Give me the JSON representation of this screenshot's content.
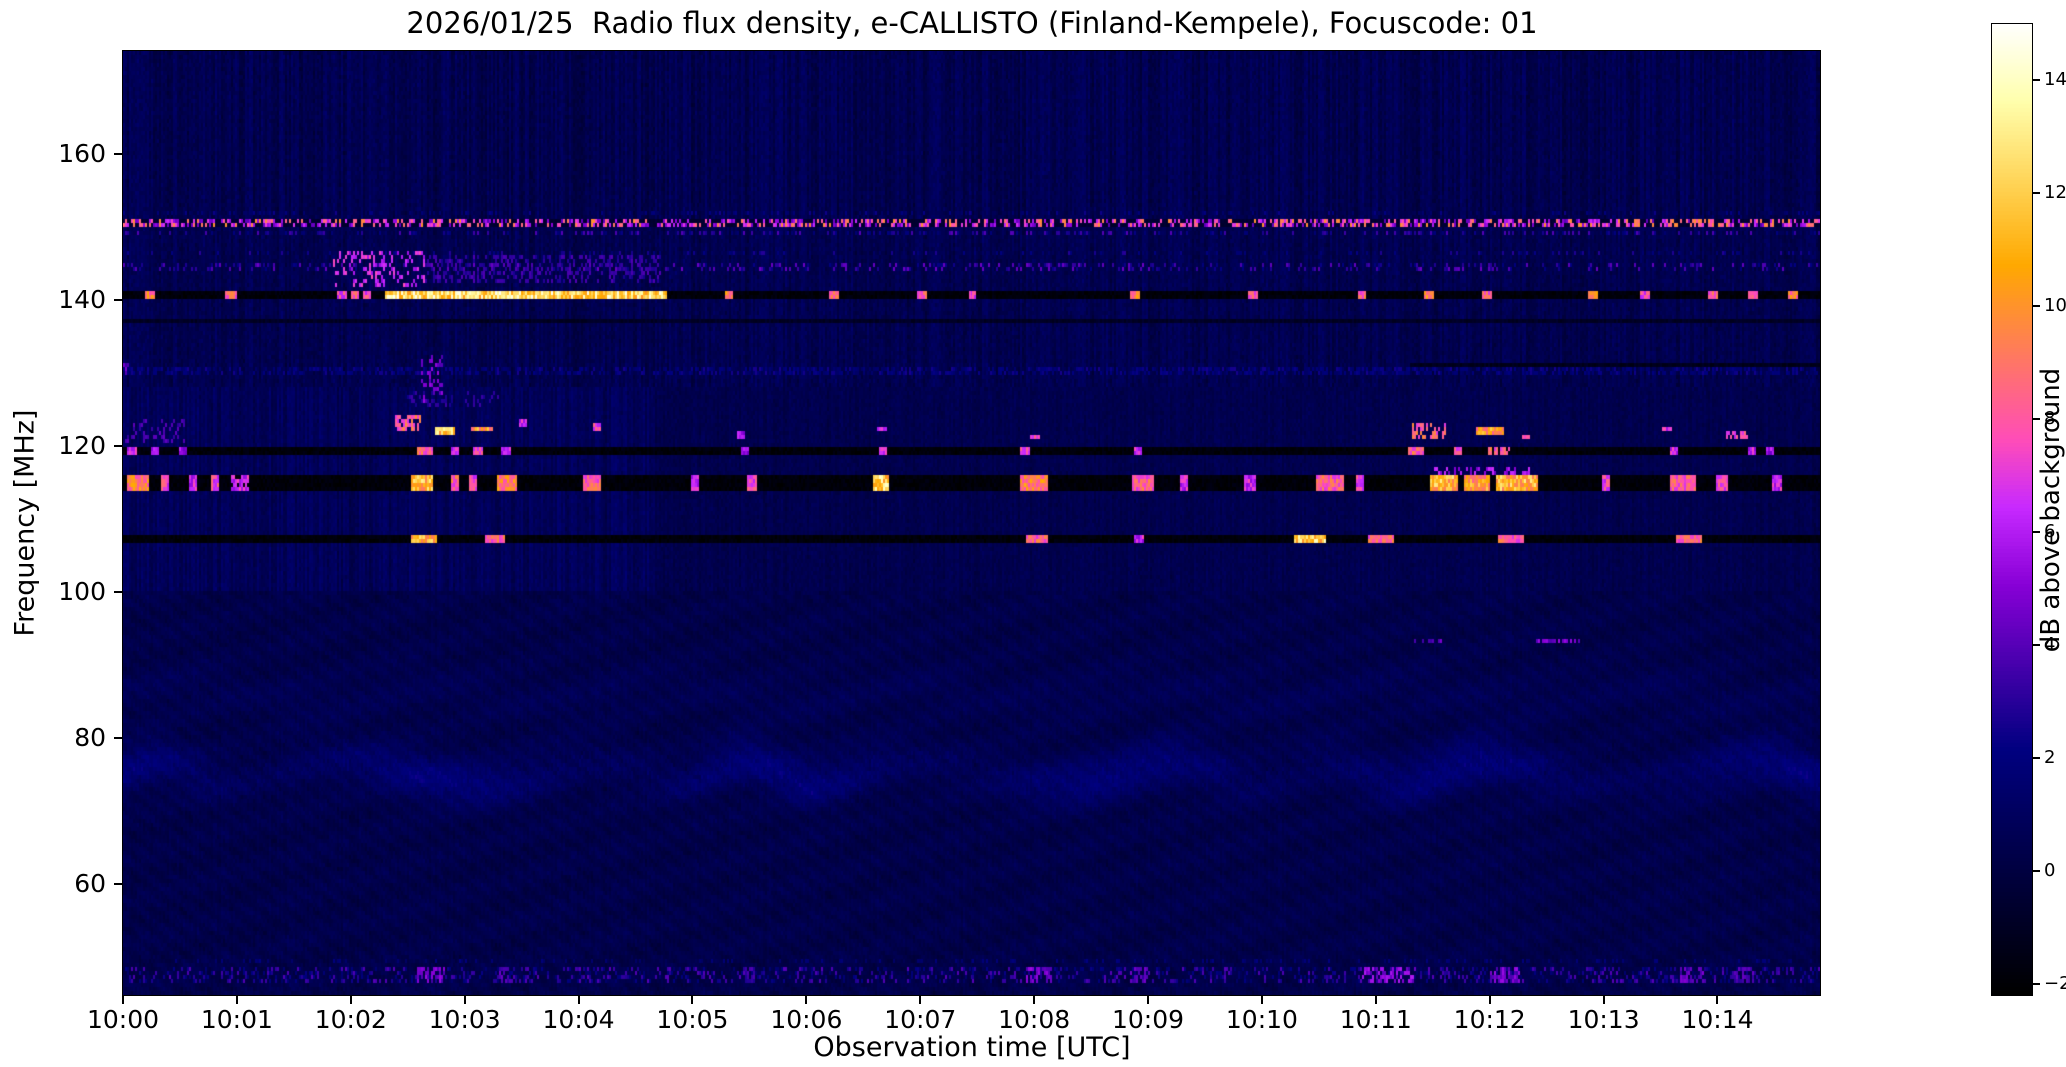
{
  "figure": {
    "title": "2026/01/25  Radio flux density, e-CALLISTO (Finland-Kempele), Focuscode: 01",
    "xlabel": "Observation time [UTC]",
    "ylabel": "Frequency [MHz]",
    "colorbar_label": "dB above background"
  },
  "chart_data": {
    "type": "heatmap",
    "title": "2026/01/25  Radio flux density, e-CALLISTO (Finland-Kempele), Focuscode: 01",
    "xlabel": "Observation time [UTC]",
    "ylabel": "Frequency [MHz]",
    "instrument": "e-CALLISTO (Finland-Kempele)",
    "focuscode": "01",
    "date": "2026/01/25",
    "x_max_minutes": 14.9,
    "x_ticks": [
      {
        "minute": 0,
        "label": "10:00"
      },
      {
        "minute": 1,
        "label": "10:01"
      },
      {
        "minute": 2,
        "label": "10:02"
      },
      {
        "minute": 3,
        "label": "10:03"
      },
      {
        "minute": 4,
        "label": "10:04"
      },
      {
        "minute": 5,
        "label": "10:05"
      },
      {
        "minute": 6,
        "label": "10:06"
      },
      {
        "minute": 7,
        "label": "10:07"
      },
      {
        "minute": 8,
        "label": "10:08"
      },
      {
        "minute": 9,
        "label": "10:09"
      },
      {
        "minute": 10,
        "label": "10:10"
      },
      {
        "minute": 11,
        "label": "10:11"
      },
      {
        "minute": 12,
        "label": "10:12"
      },
      {
        "minute": 13,
        "label": "10:13"
      },
      {
        "minute": 14,
        "label": "10:14"
      }
    ],
    "f_min": 44.8,
    "f_max": 174.1,
    "y_ticks": [
      60,
      80,
      100,
      120,
      140,
      160
    ],
    "colorbar": {
      "label": "dB above background",
      "vmin": -2.2,
      "vmax": 15,
      "ticks": [
        -2,
        0,
        2,
        4,
        6,
        8,
        10,
        12,
        14
      ]
    },
    "colormap": "gnuplot2-like: black - blue - violet - magenta - orange - yellow - white",
    "background_db": {
      "upper_mean": 0.5,
      "mid_mean_early": 0.8,
      "mid_mean_late": 0.45,
      "lower_mean": 0.3,
      "wavy_band_center_mhz": 75.3
    },
    "features": {
      "hlines": [
        {
          "f0": 139.9,
          "f1": 141.5,
          "v": -2.2
        },
        {
          "f0": 118.85,
          "f1": 119.75,
          "v": -2.2
        },
        {
          "f0": 113.6,
          "f1": 115.9,
          "v": -2.2
        },
        {
          "f0": 106.7,
          "f1": 107.8,
          "v": -2.2
        },
        {
          "f0": 137.0,
          "f1": 137.45,
          "v": -1.3
        },
        {
          "f0": 130.9,
          "f1": 131.45,
          "v": -1.6,
          "t0": 11.3
        }
      ],
      "speckle_lines": [
        {
          "f0": 150.2,
          "f1": 151.0,
          "chance": 0.5,
          "vlo": 4,
          "vhi": 10,
          "base": -0.8
        },
        {
          "f0": 149.0,
          "f1": 149.4,
          "chance": 0.3,
          "vlo": 1.5,
          "vhi": 4
        },
        {
          "f0": 151.8,
          "f1": 152.2,
          "chance": 0.2,
          "vlo": 1,
          "vhi": 2.5
        },
        {
          "f0": 144.1,
          "f1": 145.3,
          "chance": 0.22,
          "vlo": 2,
          "vhi": 4.5
        },
        {
          "f0": 146.2,
          "f1": 146.6,
          "chance": 0.15,
          "vlo": 1.5,
          "vhi": 3
        },
        {
          "f0": 129.9,
          "f1": 130.6,
          "chance": 0.5,
          "vlo": 1.2,
          "vhi": 2.6
        },
        {
          "f0": 46.3,
          "f1": 48.6,
          "chance": 0.3,
          "vlo": 1.2,
          "vhi": 4.0
        },
        {
          "f0": 49.2,
          "f1": 49.6,
          "chance": 0.15,
          "vlo": 1.2,
          "vhi": 2.2
        }
      ],
      "patches": [
        [
          0.2,
          0.28,
          139.9,
          141.5,
          10
        ],
        [
          0.9,
          1.0,
          139.9,
          141.5,
          9
        ],
        [
          1.88,
          1.96,
          139.9,
          141.5,
          8
        ],
        [
          2.0,
          2.07,
          139.9,
          141.5,
          9
        ],
        [
          2.1,
          2.17,
          139.9,
          141.5,
          8
        ],
        [
          2.3,
          4.78,
          139.9,
          141.5,
          13.5
        ],
        [
          5.28,
          5.36,
          139.9,
          141.5,
          10
        ],
        [
          6.2,
          6.28,
          139.9,
          141.5,
          9
        ],
        [
          6.97,
          7.05,
          139.9,
          141.5,
          9
        ],
        [
          7.42,
          7.5,
          139.9,
          141.5,
          8
        ],
        [
          8.84,
          8.93,
          139.9,
          141.5,
          10
        ],
        [
          9.88,
          9.97,
          139.9,
          141.5,
          9
        ],
        [
          10.84,
          10.92,
          139.9,
          141.5,
          9
        ],
        [
          11.43,
          11.52,
          139.9,
          141.5,
          10
        ],
        [
          11.93,
          12.02,
          139.9,
          141.5,
          9
        ],
        [
          12.87,
          12.96,
          139.9,
          141.5,
          10
        ],
        [
          13.32,
          13.4,
          139.9,
          141.5,
          8
        ],
        [
          13.92,
          14.01,
          139.9,
          141.5,
          9
        ],
        [
          14.27,
          14.35,
          139.9,
          141.5,
          8
        ],
        [
          14.62,
          14.71,
          139.9,
          141.5,
          10
        ],
        [
          1.85,
          2.65,
          141.8,
          146.8,
          7,
          0.3
        ],
        [
          2.65,
          4.75,
          142.3,
          146.0,
          3.5,
          0.35
        ],
        [
          0.03,
          0.12,
          118.85,
          119.75,
          7
        ],
        [
          0.25,
          0.32,
          118.85,
          119.75,
          6
        ],
        [
          0.5,
          0.56,
          118.85,
          119.75,
          6
        ],
        [
          2.58,
          2.72,
          118.85,
          119.75,
          9
        ],
        [
          2.88,
          2.95,
          118.85,
          119.75,
          7
        ],
        [
          3.08,
          3.16,
          118.85,
          119.75,
          8
        ],
        [
          3.32,
          3.4,
          118.85,
          119.75,
          7
        ],
        [
          5.43,
          5.5,
          118.85,
          119.75,
          6
        ],
        [
          6.63,
          6.7,
          118.85,
          119.75,
          7
        ],
        [
          7.88,
          7.97,
          118.85,
          119.75,
          8
        ],
        [
          8.88,
          8.95,
          118.85,
          119.75,
          7
        ],
        [
          11.28,
          11.42,
          118.85,
          119.75,
          9
        ],
        [
          11.68,
          11.76,
          118.85,
          119.75,
          8
        ],
        [
          11.98,
          12.18,
          118.85,
          119.75,
          9,
          0.8
        ],
        [
          13.58,
          13.66,
          118.85,
          119.75,
          7
        ],
        [
          14.27,
          14.34,
          118.85,
          119.75,
          7
        ],
        [
          14.43,
          14.5,
          118.85,
          119.75,
          6
        ],
        [
          0.03,
          0.22,
          113.6,
          115.9,
          10
        ],
        [
          0.33,
          0.4,
          113.6,
          115.9,
          8
        ],
        [
          0.58,
          0.65,
          113.6,
          115.9,
          7
        ],
        [
          0.78,
          0.85,
          113.6,
          115.9,
          8
        ],
        [
          0.95,
          1.1,
          113.6,
          115.9,
          7,
          0.8
        ],
        [
          2.52,
          2.72,
          113.6,
          115.9,
          12
        ],
        [
          2.87,
          2.95,
          113.6,
          115.9,
          9
        ],
        [
          3.03,
          3.1,
          113.6,
          115.9,
          8
        ],
        [
          3.28,
          3.46,
          113.6,
          115.9,
          10
        ],
        [
          4.03,
          4.2,
          113.6,
          115.9,
          9
        ],
        [
          4.98,
          5.05,
          113.6,
          115.9,
          7
        ],
        [
          5.48,
          5.56,
          113.6,
          115.9,
          8
        ],
        [
          6.58,
          6.72,
          113.6,
          115.9,
          13
        ],
        [
          7.88,
          8.12,
          113.6,
          115.9,
          10
        ],
        [
          8.87,
          9.06,
          113.6,
          115.9,
          9
        ],
        [
          9.28,
          9.35,
          113.6,
          115.9,
          7
        ],
        [
          9.85,
          9.95,
          113.6,
          115.9,
          7
        ],
        [
          10.48,
          10.72,
          113.6,
          115.9,
          9
        ],
        [
          10.83,
          10.9,
          113.6,
          115.9,
          8
        ],
        [
          11.48,
          11.72,
          113.6,
          115.9,
          12
        ],
        [
          11.78,
          12.0,
          113.6,
          115.9,
          11
        ],
        [
          12.05,
          12.42,
          113.6,
          115.9,
          12
        ],
        [
          12.98,
          13.05,
          113.6,
          115.9,
          8
        ],
        [
          13.58,
          13.82,
          113.6,
          115.9,
          9
        ],
        [
          13.98,
          14.1,
          113.6,
          115.9,
          8
        ],
        [
          14.48,
          14.56,
          113.6,
          115.9,
          7
        ],
        [
          11.5,
          12.4,
          115.9,
          117.2,
          6,
          0.4
        ],
        [
          2.53,
          2.76,
          106.8,
          107.7,
          12
        ],
        [
          3.18,
          3.36,
          106.8,
          107.7,
          9
        ],
        [
          7.93,
          8.12,
          106.8,
          107.7,
          9
        ],
        [
          8.88,
          8.96,
          106.8,
          107.7,
          7
        ],
        [
          10.28,
          10.56,
          106.8,
          107.7,
          13
        ],
        [
          10.93,
          11.16,
          106.8,
          107.7,
          9
        ],
        [
          12.08,
          12.3,
          106.8,
          107.7,
          9
        ],
        [
          13.63,
          13.86,
          106.8,
          107.7,
          9
        ],
        [
          0.02,
          0.55,
          120.3,
          123.5,
          4,
          0.25
        ],
        [
          2.38,
          2.62,
          122.2,
          124.5,
          9,
          0.6
        ],
        [
          2.73,
          2.92,
          121.3,
          122.4,
          13
        ],
        [
          3.06,
          3.24,
          121.8,
          122.8,
          11
        ],
        [
          3.48,
          3.55,
          122.8,
          123.5,
          7
        ],
        [
          4.12,
          4.2,
          122.0,
          122.9,
          8
        ],
        [
          5.38,
          5.46,
          121.2,
          121.9,
          6
        ],
        [
          6.62,
          6.7,
          121.8,
          122.4,
          7
        ],
        [
          7.97,
          8.05,
          120.8,
          121.6,
          8
        ],
        [
          11.32,
          11.62,
          121.0,
          123.0,
          9,
          0.55
        ],
        [
          11.88,
          12.12,
          121.7,
          122.7,
          11
        ],
        [
          12.28,
          12.36,
          120.9,
          121.6,
          8
        ],
        [
          13.52,
          13.6,
          121.8,
          122.5,
          7
        ],
        [
          14.07,
          14.27,
          121.2,
          122.2,
          8,
          0.7
        ],
        [
          2.45,
          3.3,
          125.2,
          127.4,
          3.2,
          0.2
        ],
        [
          2.62,
          2.8,
          126.0,
          132.5,
          5,
          0.3
        ],
        [
          0.0,
          0.06,
          129.5,
          131.5,
          4.5,
          0.7
        ],
        [
          11.33,
          11.58,
          93.0,
          93.6,
          4.5,
          0.5
        ],
        [
          12.38,
          12.8,
          93.0,
          93.6,
          5,
          0.55
        ],
        [
          2.58,
          2.82,
          46.4,
          48.5,
          5,
          0.5
        ],
        [
          3.28,
          3.4,
          46.4,
          48.5,
          4,
          0.5
        ],
        [
          5.45,
          5.55,
          46.4,
          48.5,
          3.5,
          0.5
        ],
        [
          7.93,
          8.16,
          46.4,
          48.5,
          5,
          0.5
        ],
        [
          8.83,
          9.0,
          46.4,
          48.5,
          4.5,
          0.5
        ],
        [
          10.88,
          11.36,
          46.4,
          48.5,
          5.5,
          0.45
        ],
        [
          11.98,
          12.26,
          46.4,
          48.5,
          5,
          0.5
        ],
        [
          13.68,
          13.88,
          46.4,
          48.5,
          4.5,
          0.5
        ],
        [
          14.15,
          14.32,
          46.4,
          48.5,
          4,
          0.5
        ]
      ]
    }
  }
}
